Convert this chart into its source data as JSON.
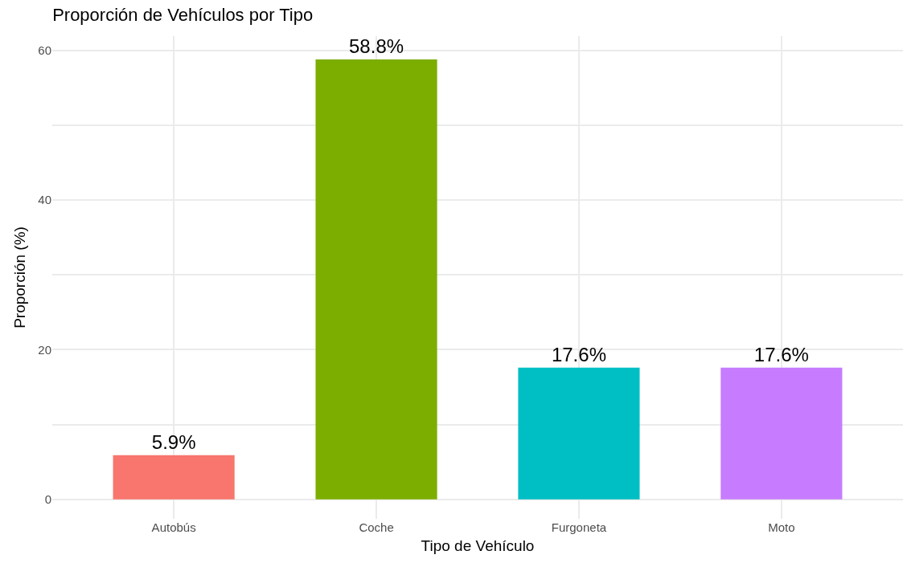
{
  "chart_data": {
    "type": "bar",
    "title": "Proporción de Vehículos por Tipo",
    "xlabel": "Tipo de Vehículo",
    "ylabel": "Proporción (%)",
    "categories": [
      "Autobús",
      "Coche",
      "Furgoneta",
      "Moto"
    ],
    "values": [
      5.9,
      58.8,
      17.6,
      17.6
    ],
    "colors": [
      "#f8766d",
      "#7cae00",
      "#00bfc4",
      "#c77cff"
    ],
    "value_labels": [
      "5.9%",
      "58.8%",
      "17.6%",
      "17.6%"
    ],
    "ylim": [
      -2.6,
      61.9
    ],
    "yticks": [
      0,
      {
        "value": 10,
        "label": null
      },
      20,
      {
        "value": 30,
        "label": null
      },
      40,
      {
        "value": 50,
        "label": null
      },
      60
    ],
    "grid": true,
    "legend": false
  }
}
